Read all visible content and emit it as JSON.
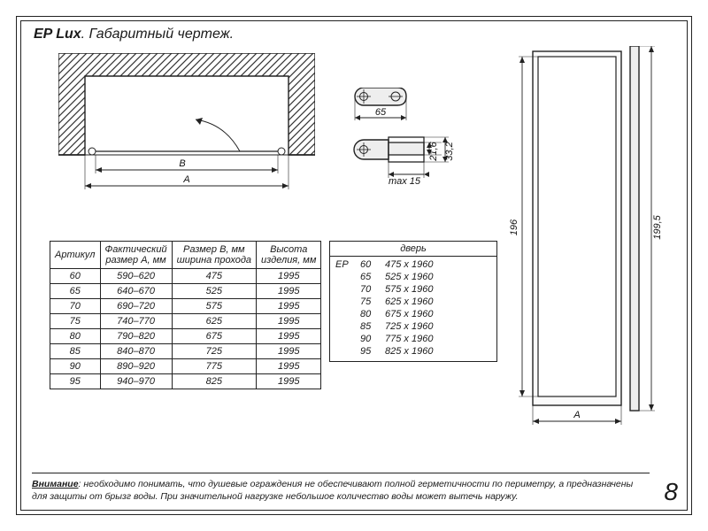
{
  "title_bold": "EP Lux",
  "title_rest": ". Габаритный чертеж.",
  "plan": {
    "dim_B": "B",
    "dim_A": "A",
    "hatch_color": "#333",
    "outline_color": "#222"
  },
  "details": {
    "d1_width": "65",
    "d2_max": "max 15",
    "d2_h1": "21,6",
    "d2_h2": "33,2"
  },
  "elev": {
    "h_inner": "196",
    "h_outer": "199,5",
    "w_label": "A"
  },
  "spec": {
    "headers": [
      "Артикул",
      "Фактический размер А, мм",
      "Размер В, мм ширина прохода",
      "Высота изделия, мм"
    ],
    "rows": [
      [
        "60",
        "590–620",
        "475",
        "1995"
      ],
      [
        "65",
        "640–670",
        "525",
        "1995"
      ],
      [
        "70",
        "690–720",
        "575",
        "1995"
      ],
      [
        "75",
        "740–770",
        "625",
        "1995"
      ],
      [
        "80",
        "790–820",
        "675",
        "1995"
      ],
      [
        "85",
        "840–870",
        "725",
        "1995"
      ],
      [
        "90",
        "890–920",
        "775",
        "1995"
      ],
      [
        "95",
        "940–970",
        "825",
        "1995"
      ]
    ]
  },
  "door": {
    "title": "дверь",
    "prefix": "EP",
    "rows": [
      [
        "60",
        "475 х 1960"
      ],
      [
        "65",
        "525 х 1960"
      ],
      [
        "70",
        "575 х 1960"
      ],
      [
        "75",
        "625 х 1960"
      ],
      [
        "80",
        "675 х 1960"
      ],
      [
        "85",
        "725 х 1960"
      ],
      [
        "90",
        "775 х 1960"
      ],
      [
        "95",
        "825 х 1960"
      ]
    ]
  },
  "footer": {
    "lead": "Внимание",
    "text": ": необходимо понимать, что душевые ограждения не обеспечивают полной герметичности по периметру, а предназначены для защиты от брызг воды. При значительной нагрузке небольшое количество воды может вытечь наружу."
  },
  "pagenum": "8"
}
